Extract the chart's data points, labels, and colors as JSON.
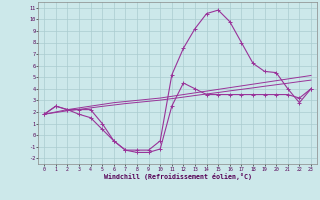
{
  "xlabel": "Windchill (Refroidissement éolien,°C)",
  "hours": [
    0,
    1,
    2,
    3,
    4,
    5,
    6,
    7,
    8,
    9,
    10,
    11,
    12,
    13,
    14,
    15,
    16,
    17,
    18,
    19,
    20,
    21,
    22,
    23
  ],
  "curve_temp": [
    1.8,
    2.5,
    2.2,
    2.2,
    2.2,
    1.0,
    -0.5,
    -1.3,
    -1.3,
    -1.3,
    -0.5,
    5.2,
    7.5,
    9.2,
    10.5,
    10.8,
    9.8,
    8.0,
    6.2,
    5.5,
    5.4,
    4.0,
    2.8,
    4.0
  ],
  "curve_wc": [
    1.8,
    2.5,
    2.2,
    1.8,
    1.5,
    0.5,
    -0.5,
    -1.3,
    -1.5,
    -1.5,
    -1.2,
    2.5,
    4.5,
    4.0,
    3.5,
    3.5,
    3.5,
    3.5,
    3.5,
    3.5,
    3.5,
    3.5,
    3.2,
    4.0
  ],
  "trend1": [
    1.8,
    2.0,
    2.2,
    2.35,
    2.5,
    2.65,
    2.8,
    2.9,
    3.0,
    3.1,
    3.2,
    3.35,
    3.5,
    3.65,
    3.8,
    3.95,
    4.1,
    4.25,
    4.4,
    4.55,
    4.7,
    4.85,
    5.0,
    5.15
  ],
  "trend2": [
    1.8,
    1.95,
    2.1,
    2.22,
    2.35,
    2.48,
    2.6,
    2.72,
    2.82,
    2.92,
    3.02,
    3.15,
    3.28,
    3.42,
    3.55,
    3.68,
    3.82,
    3.95,
    4.08,
    4.22,
    4.35,
    4.48,
    4.62,
    4.75
  ],
  "line_color": "#993399",
  "bg_color": "#cce8ea",
  "grid_color": "#aacccf",
  "ylim": [
    -2.5,
    11.5
  ],
  "yticks": [
    -2,
    -1,
    0,
    1,
    2,
    3,
    4,
    5,
    6,
    7,
    8,
    9,
    10,
    11
  ],
  "xticks": [
    0,
    1,
    2,
    3,
    4,
    5,
    6,
    7,
    8,
    9,
    10,
    11,
    12,
    13,
    14,
    15,
    16,
    17,
    18,
    19,
    20,
    21,
    22,
    23
  ],
  "figsize": [
    3.2,
    2.0
  ],
  "dpi": 100
}
